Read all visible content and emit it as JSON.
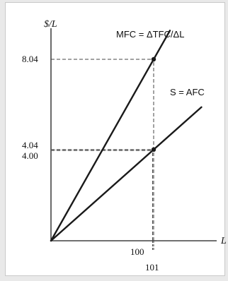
{
  "chart_data": {
    "type": "line",
    "xlabel": "L",
    "ylabel": "$/L",
    "xlim": [
      0,
      120
    ],
    "ylim": [
      0,
      10
    ],
    "grid": false,
    "x_ticks": [
      {
        "value": 100,
        "label": "100"
      },
      {
        "value": 101,
        "label": "101"
      }
    ],
    "y_ticks": [
      {
        "value": 8.04,
        "label": "8.04"
      },
      {
        "value": 4.04,
        "label": "4.04"
      },
      {
        "value": 4.0,
        "label": "4.00"
      }
    ],
    "series": [
      {
        "name": "MFC = ΔTFC/ΔL",
        "x": [
          0,
          101
        ],
        "y": [
          0,
          8.04
        ],
        "extends_to_x": 115
      },
      {
        "name": "S = AFC",
        "x": [
          0,
          101
        ],
        "y": [
          0,
          4.04
        ],
        "extends_to_x": 155
      }
    ],
    "points": [
      {
        "x": 101,
        "y": 8.04
      },
      {
        "x": 101,
        "y": 4.04
      }
    ],
    "shaded_region": {
      "x": [
        0,
        101
      ],
      "y": [
        4.0,
        4.04
      ],
      "color": "#cfcfcf"
    },
    "guides": [
      {
        "from": [
          0,
          8.04
        ],
        "to": [
          101,
          8.04
        ]
      },
      {
        "from": [
          0,
          4.04
        ],
        "to": [
          101,
          4.04
        ]
      },
      {
        "from": [
          0,
          4.0
        ],
        "to": [
          100,
          4.0
        ]
      },
      {
        "from": [
          100,
          0
        ],
        "to": [
          100,
          4.0
        ]
      },
      {
        "from": [
          101,
          0
        ],
        "to": [
          101,
          8.04
        ]
      }
    ],
    "colors": {
      "line": "#1a1a1a",
      "guide": "#444444",
      "shade": "#cfcfcf"
    }
  }
}
